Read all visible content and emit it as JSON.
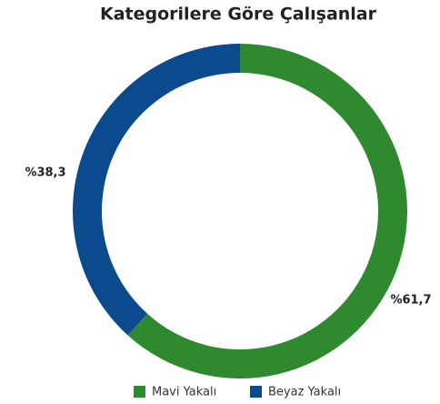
{
  "chart_data": {
    "type": "donut",
    "title": "Kategorilere Göre Çalışanlar",
    "categories": [
      "Mavi Yakalı",
      "Beyaz Yakalı"
    ],
    "values": [
      61.7,
      38.3
    ],
    "value_labels": [
      "%61,7",
      "%38,3"
    ],
    "colors": [
      "#2f8a2f",
      "#0b4a8c"
    ]
  }
}
